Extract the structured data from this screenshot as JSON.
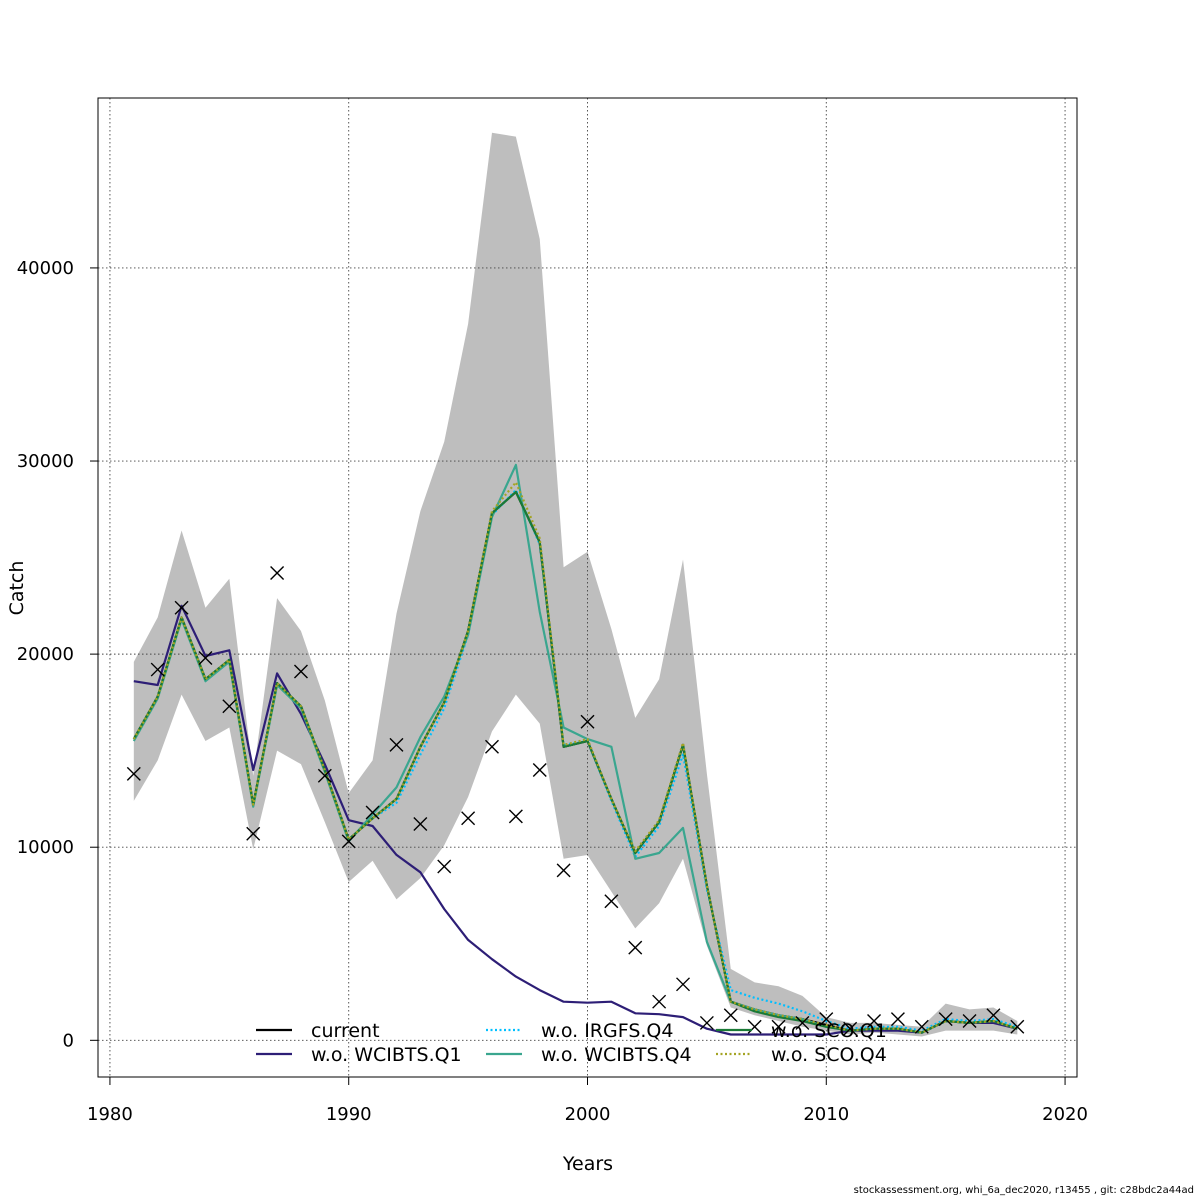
{
  "chart_data": {
    "type": "line",
    "xlabel": "Years",
    "ylabel": "Catch",
    "xlim": [
      1979.5,
      2020.5
    ],
    "ylim": [
      -1900,
      48800
    ],
    "x_ticks": [
      1980,
      1990,
      2000,
      2010,
      2020
    ],
    "y_ticks": [
      0,
      10000,
      20000,
      30000,
      40000
    ],
    "grid": true,
    "legend_position": "bottom",
    "years": [
      1981,
      1982,
      1983,
      1984,
      1985,
      1986,
      1987,
      1988,
      1989,
      1990,
      1991,
      1992,
      1993,
      1994,
      1995,
      1996,
      1997,
      1998,
      1999,
      2000,
      2001,
      2002,
      2003,
      2004,
      2005,
      2006,
      2007,
      2008,
      2009,
      2010,
      2011,
      2012,
      2013,
      2014,
      2015,
      2016,
      2017,
      2018
    ],
    "confidence_band": {
      "color": "#bebebe",
      "lower": [
        12400,
        14500,
        17900,
        15500,
        16200,
        9900,
        15000,
        14300,
        11300,
        8200,
        9300,
        7300,
        8400,
        10100,
        12600,
        16000,
        17900,
        16400,
        9400,
        9600,
        7700,
        5800,
        7100,
        9400,
        4900,
        1700,
        1300,
        1000,
        700,
        500,
        300,
        400,
        300,
        200,
        500,
        500,
        500,
        300
      ],
      "upper": [
        19600,
        21900,
        26400,
        22400,
        23900,
        13700,
        22900,
        21200,
        17600,
        12800,
        14500,
        22100,
        27400,
        31000,
        37100,
        47000,
        46800,
        41500,
        24500,
        25300,
        21300,
        16700,
        18700,
        24900,
        13800,
        3700,
        3000,
        2800,
        2300,
        1200,
        900,
        900,
        800,
        700,
        1900,
        1600,
        1700,
        1000
      ]
    },
    "observed": {
      "marker": "x",
      "values": [
        13800,
        19200,
        22400,
        19800,
        17300,
        10700,
        24200,
        19100,
        13700,
        10300,
        11800,
        15300,
        11200,
        9000,
        11500,
        15200,
        11600,
        14000,
        8800,
        16500,
        7200,
        4800,
        2000,
        2900,
        900,
        1300,
        700,
        700,
        900,
        1100,
        600,
        1000,
        1100,
        700,
        1100,
        1000,
        1300,
        700
      ]
    },
    "series": [
      {
        "name": "current",
        "color": "#000000",
        "dash": "solid",
        "values": [
          15600,
          17800,
          21900,
          18700,
          19700,
          12200,
          18500,
          17300,
          14000,
          10400,
          11500,
          12500,
          15200,
          17500,
          21200,
          27300,
          28400,
          25800,
          15200,
          15500,
          12500,
          9700,
          11300,
          15300,
          8000,
          2000,
          1600,
          1300,
          1100,
          800,
          500,
          600,
          600,
          400,
          1000,
          900,
          1000,
          600
        ]
      },
      {
        "name": "w.o. WCIBTS.Q1",
        "color": "#2d1e76",
        "dash": "solid",
        "values": [
          18600,
          18400,
          22500,
          19900,
          20200,
          14000,
          19000,
          16900,
          14300,
          11400,
          11100,
          9600,
          8700,
          6800,
          5200,
          4200,
          3300,
          2600,
          2000,
          1950,
          2000,
          1400,
          1350,
          1200,
          600,
          300,
          300,
          300,
          300,
          300,
          500,
          500,
          500,
          400,
          1000,
          900,
          900,
          600
        ]
      },
      {
        "name": "w.o. IRGFS.Q4",
        "color": "#00bfff",
        "dash": "dotted",
        "values": [
          15600,
          17800,
          21900,
          18700,
          19700,
          12200,
          18500,
          17300,
          14000,
          10400,
          11500,
          12300,
          14800,
          17200,
          21000,
          27200,
          28500,
          25700,
          15300,
          15500,
          12400,
          9500,
          11100,
          14800,
          7800,
          2600,
          2200,
          1900,
          1500,
          1000,
          600,
          700,
          700,
          500,
          1100,
          1000,
          1100,
          700
        ]
      },
      {
        "name": "w.o. WCIBTS.Q4",
        "color": "#3aa68f",
        "dash": "solid",
        "values": [
          15500,
          17700,
          21800,
          18600,
          19600,
          12100,
          18400,
          17200,
          13900,
          10300,
          11700,
          13100,
          15700,
          17800,
          21000,
          27100,
          29800,
          22200,
          16200,
          15600,
          15200,
          9400,
          9700,
          11000,
          5100,
          2000,
          1600,
          1300,
          1100,
          700,
          500,
          600,
          600,
          400,
          1000,
          900,
          1000,
          600
        ]
      },
      {
        "name": "w.o. SCO.Q1",
        "color": "#1a7a36",
        "dash": "solid",
        "values": [
          15600,
          17800,
          21900,
          18700,
          19700,
          12200,
          18500,
          17300,
          14000,
          10400,
          11500,
          12500,
          15200,
          17500,
          21200,
          27300,
          28400,
          25800,
          15200,
          15500,
          12500,
          9700,
          11300,
          15300,
          8000,
          2000,
          1500,
          1200,
          1000,
          700,
          500,
          600,
          600,
          400,
          1000,
          900,
          1000,
          600
        ]
      },
      {
        "name": "w.o. SCO.Q4",
        "color": "#a4a424",
        "dash": "dotted",
        "values": [
          15600,
          17800,
          21900,
          18700,
          19700,
          12200,
          18500,
          17300,
          14000,
          10400,
          11500,
          12500,
          15200,
          17500,
          21200,
          27400,
          28900,
          26000,
          15300,
          15600,
          12500,
          9800,
          11400,
          15400,
          8000,
          2000,
          1600,
          1300,
          1100,
          800,
          500,
          600,
          600,
          400,
          1000,
          900,
          1000,
          600
        ]
      }
    ]
  },
  "footer_text": "stockassessment.org, whi_6a_dec2020, r13455 , git: c28bdc2a44ad"
}
